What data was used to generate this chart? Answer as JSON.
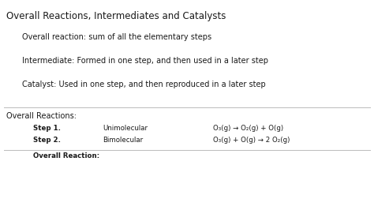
{
  "title": "Overall Reactions, Intermediates and Catalysts",
  "bullet1": "Overall reaction: sum of all the elementary steps",
  "bullet2": "Intermediate: Formed in one step, and then used in a later step",
  "bullet3": "Catalyst: Used in one step, and then reproduced in a later step",
  "section_label": "Overall Reactions:",
  "step1_label": "Step 1.",
  "step1_type": "Unimolecular",
  "step1_eq": "O₃(g) → O₂(g) + O(g)",
  "step2_label": "Step 2.",
  "step2_type": "Bimolecular",
  "step2_eq": "O₃(g) + O(g) → 2 O₂(g)",
  "overall_label": "Overall Reaction:",
  "bg_color": "#ffffff",
  "text_color": "#1a1a1a",
  "title_fontsize": 8.5,
  "body_fontsize": 7.0,
  "small_fontsize": 6.2
}
